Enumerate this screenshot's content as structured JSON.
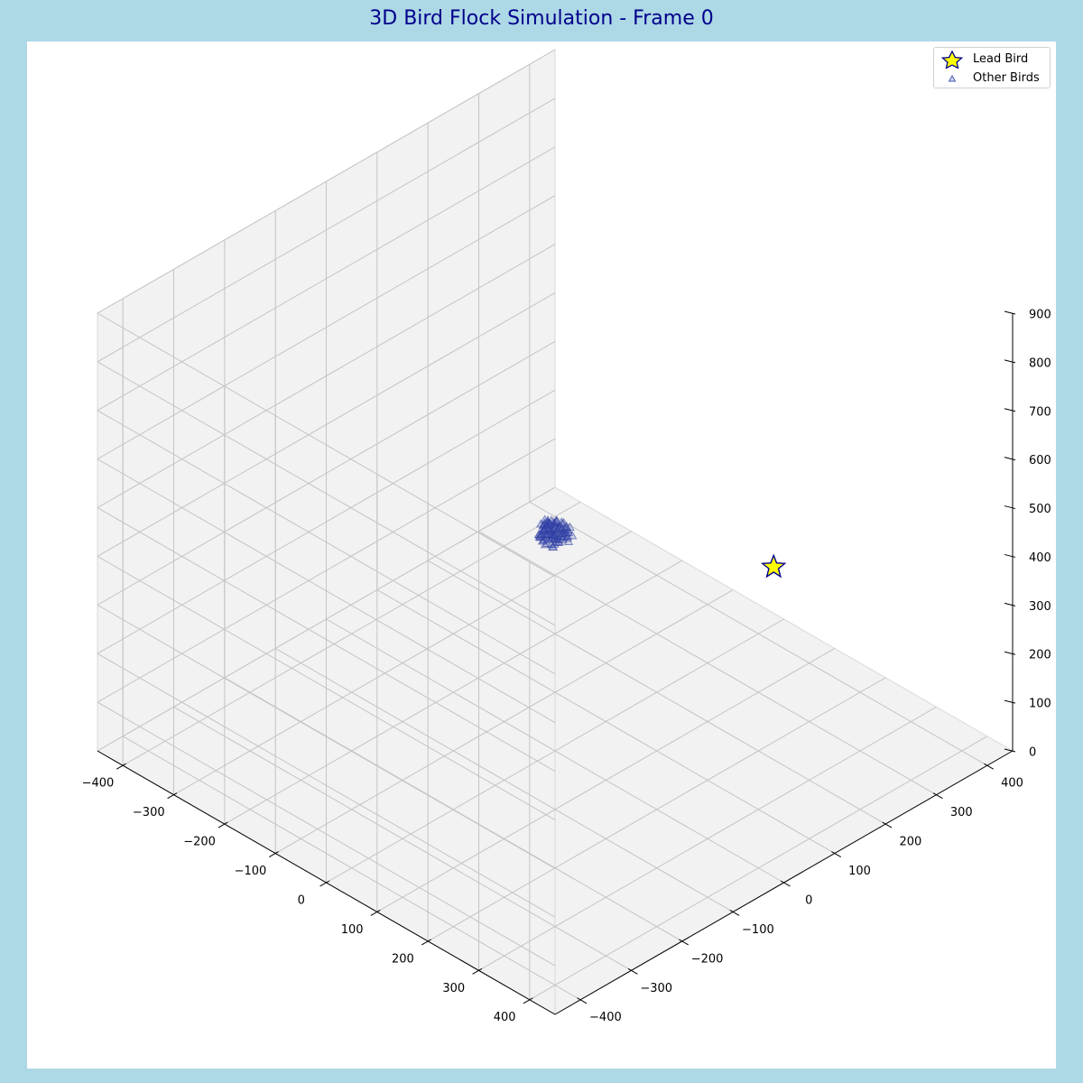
{
  "chart_data": {
    "type": "scatter",
    "projection": "3d",
    "title": "3D Bird Flock Simulation - Frame 0",
    "xlim": [
      -450,
      450
    ],
    "ylim": [
      -450,
      450
    ],
    "zlim": [
      0,
      900
    ],
    "x_ticks": [
      -400,
      -300,
      -200,
      -100,
      0,
      100,
      200,
      300,
      400
    ],
    "y_ticks": [
      -400,
      -300,
      -200,
      -100,
      0,
      100,
      200,
      300,
      400
    ],
    "z_ticks": [
      0,
      100,
      200,
      300,
      400,
      500,
      600,
      700,
      800,
      900
    ],
    "x_tick_labels": [
      "−400",
      "−300",
      "−200",
      "−100",
      "0",
      "100",
      "200",
      "300",
      "400"
    ],
    "y_tick_labels": [
      "−400",
      "−300",
      "−200",
      "−100",
      "0",
      "100",
      "200",
      "300",
      "400"
    ],
    "z_tick_labels": [
      "0",
      "100",
      "200",
      "300",
      "400",
      "500",
      "600",
      "700",
      "800",
      "900"
    ],
    "grid": true,
    "legend_position": "top-right",
    "series": [
      {
        "name": "Lead Bird",
        "marker": "star",
        "color": "#ffff00",
        "edge_color": "#00008b",
        "points": [
          [
            180,
            250,
            420
          ]
        ]
      },
      {
        "name": "Other Birds",
        "marker": "triangle",
        "color": "#4a5bb8",
        "edge_color": "#2b3aa0",
        "cluster_center": [
          0,
          0,
          450
        ],
        "cluster_radius": 25,
        "count": 110
      }
    ]
  }
}
